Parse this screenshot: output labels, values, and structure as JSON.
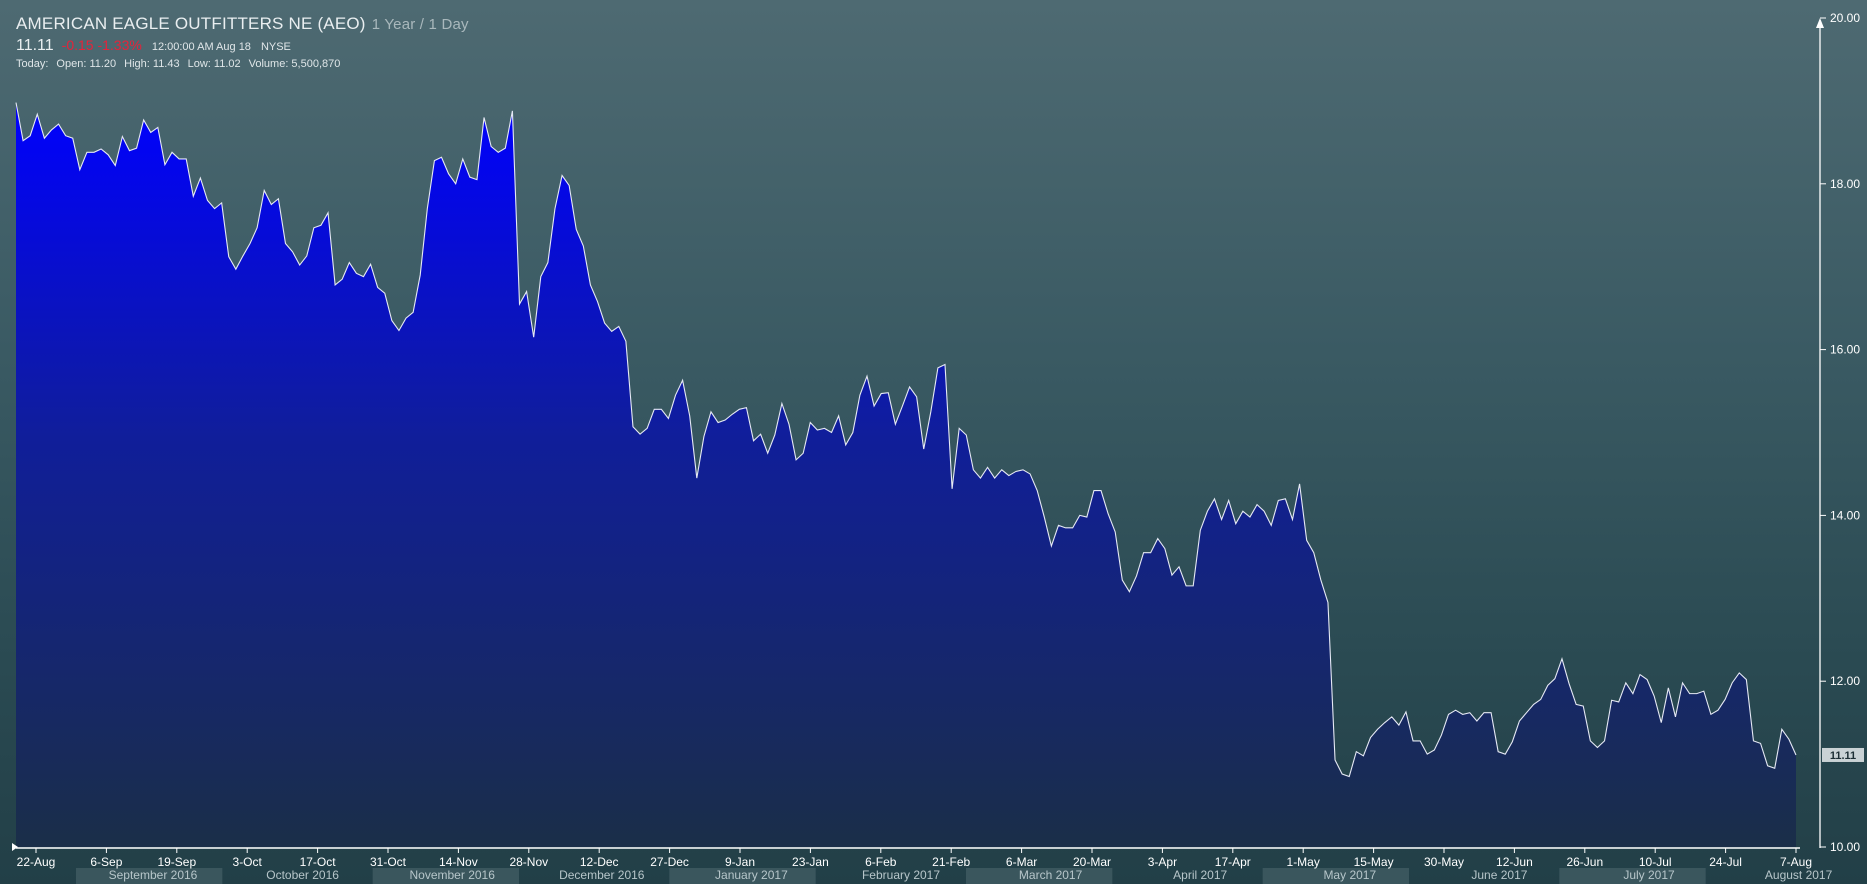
{
  "header": {
    "title": "AMERICAN EAGLE OUTFITTERS NE (AEO)",
    "range": "1 Year / 1 Day",
    "price": "11.11",
    "change": "-0.15 -1.33%",
    "time": "12:00:00 AM Aug 18",
    "exchange": "NYSE",
    "today_label": "Today:",
    "open": "Open: 11.20",
    "high": "High: 11.43",
    "low": "Low: 11.02",
    "volume": "Volume: 5,500,870"
  },
  "chart_data": {
    "type": "area",
    "title": "AMERICAN EAGLE OUTFITTERS NE (AEO)",
    "xlabel": "",
    "ylabel": "",
    "ylim": [
      10,
      20
    ],
    "y_ticks": [
      "10.00",
      "12.00",
      "14.00",
      "16.00",
      "18.00",
      "20.00"
    ],
    "x_ticks": [
      "22-Aug",
      "6-Sep",
      "19-Sep",
      "3-Oct",
      "17-Oct",
      "31-Oct",
      "14-Nov",
      "28-Nov",
      "12-Dec",
      "27-Dec",
      "9-Jan",
      "23-Jan",
      "6-Feb",
      "21-Feb",
      "6-Mar",
      "20-Mar",
      "3-Apr",
      "17-Apr",
      "1-May",
      "15-May",
      "30-May",
      "12-Jun",
      "26-Jun",
      "10-Jul",
      "24-Jul",
      "7-Aug"
    ],
    "months": [
      "September 2016",
      "October 2016",
      "November 2016",
      "December 2016",
      "January 2017",
      "February 2017",
      "March 2017",
      "April 2017",
      "May 2017",
      "June 2017",
      "July 2017",
      "August 2017"
    ],
    "last_price_label": "11.11",
    "colors": {
      "area_top": "#0000ff",
      "area_bottom": "#1a2e48",
      "line": "#e6e9f5"
    },
    "values": [
      18.98,
      18.52,
      18.58,
      18.84,
      18.55,
      18.65,
      18.72,
      18.58,
      18.55,
      18.17,
      18.38,
      18.38,
      18.42,
      18.35,
      18.22,
      18.57,
      18.4,
      18.43,
      18.77,
      18.62,
      18.68,
      18.23,
      18.38,
      18.3,
      18.3,
      17.85,
      18.07,
      17.8,
      17.7,
      17.77,
      17.12,
      16.97,
      17.13,
      17.28,
      17.47,
      17.92,
      17.75,
      17.82,
      17.28,
      17.18,
      17.02,
      17.13,
      17.47,
      17.5,
      17.65,
      16.78,
      16.85,
      17.05,
      16.92,
      16.88,
      17.03,
      16.75,
      16.68,
      16.35,
      16.23,
      16.38,
      16.45,
      16.9,
      17.7,
      18.28,
      18.32,
      18.12,
      18.0,
      18.3,
      18.08,
      18.05,
      18.8,
      18.45,
      18.38,
      18.43,
      18.88,
      16.55,
      16.7,
      16.15,
      16.88,
      17.05,
      17.7,
      18.1,
      17.98,
      17.45,
      17.25,
      16.78,
      16.58,
      16.32,
      16.22,
      16.28,
      16.1,
      15.07,
      14.98,
      15.05,
      15.28,
      15.28,
      15.17,
      15.45,
      15.63,
      15.2,
      14.45,
      14.95,
      15.25,
      15.12,
      15.15,
      15.22,
      15.28,
      15.3,
      14.9,
      14.98,
      14.75,
      14.97,
      15.35,
      15.1,
      14.67,
      14.75,
      15.12,
      15.03,
      15.05,
      15.0,
      15.2,
      14.85,
      15.0,
      15.45,
      15.68,
      15.32,
      15.47,
      15.48,
      15.1,
      15.32,
      15.55,
      15.43,
      14.8,
      15.25,
      15.78,
      15.82,
      14.32,
      15.05,
      14.97,
      14.55,
      14.45,
      14.58,
      14.45,
      14.55,
      14.48,
      14.53,
      14.55,
      14.5,
      14.3,
      13.98,
      13.63,
      13.88,
      13.85,
      13.85,
      14.0,
      13.98,
      14.3,
      14.3,
      14.02,
      13.8,
      13.22,
      13.08,
      13.27,
      13.55,
      13.55,
      13.72,
      13.6,
      13.28,
      13.38,
      13.15,
      13.15,
      13.82,
      14.05,
      14.2,
      13.95,
      14.18,
      13.9,
      14.05,
      13.98,
      14.13,
      14.05,
      13.88,
      14.18,
      14.2,
      13.95,
      14.38,
      13.7,
      13.55,
      13.22,
      12.95,
      11.05,
      10.88,
      10.85,
      11.15,
      11.1,
      11.32,
      11.42,
      11.5,
      11.57,
      11.47,
      11.63,
      11.28,
      11.28,
      11.12,
      11.17,
      11.35,
      11.6,
      11.65,
      11.6,
      11.62,
      11.52,
      11.62,
      11.62,
      11.15,
      11.12,
      11.27,
      11.52,
      11.62,
      11.72,
      11.78,
      11.95,
      12.03,
      12.27,
      11.97,
      11.72,
      11.7,
      11.28,
      11.2,
      11.28,
      11.77,
      11.75,
      11.98,
      11.85,
      12.08,
      12.02,
      11.82,
      11.5,
      11.92,
      11.57,
      11.98,
      11.85,
      11.85,
      11.88,
      11.6,
      11.65,
      11.78,
      11.98,
      12.1,
      12.02,
      11.28,
      11.25,
      10.98,
      10.95,
      11.42,
      11.3,
      11.11
    ]
  }
}
